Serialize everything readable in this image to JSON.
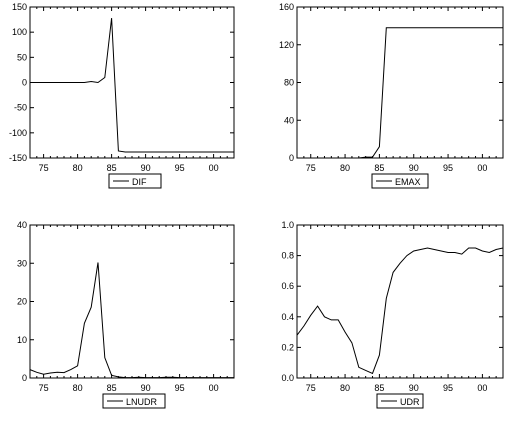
{
  "chart_data": [
    {
      "type": "line",
      "series": [
        {
          "name": "DIF",
          "x": [
            1973,
            1974,
            1975,
            1976,
            1977,
            1978,
            1979,
            1980,
            1981,
            1982,
            1983,
            1984,
            1985,
            1986,
            1987,
            1988,
            1989,
            1990,
            1991,
            1992,
            1993,
            1994,
            1995,
            1996,
            1997,
            1998,
            1999,
            2000,
            2001,
            2002,
            2003
          ],
          "values": [
            0,
            0,
            0,
            0,
            0,
            0,
            0,
            0,
            0,
            2,
            0,
            10,
            128,
            -136,
            -138,
            -138,
            -138,
            -138,
            -138,
            -138,
            -138,
            -138,
            -138,
            -138,
            -138,
            -138,
            -138,
            -138,
            -138,
            -138,
            -138
          ]
        }
      ],
      "xlim": [
        1973,
        2003
      ],
      "ylim": [
        -150,
        150
      ],
      "x_ticks": [
        {
          "v": 1975,
          "label": "75"
        },
        {
          "v": 1980,
          "label": "80"
        },
        {
          "v": 1985,
          "label": "85"
        },
        {
          "v": 1990,
          "label": "90"
        },
        {
          "v": 1995,
          "label": "95"
        },
        {
          "v": 2000,
          "label": "00"
        }
      ],
      "y_ticks": [
        {
          "v": -150,
          "label": "-150"
        },
        {
          "v": -100,
          "label": "-100"
        },
        {
          "v": -50,
          "label": "-50"
        },
        {
          "v": 0,
          "label": "0"
        },
        {
          "v": 50,
          "label": "50"
        },
        {
          "v": 100,
          "label": "100"
        },
        {
          "v": 150,
          "label": "150"
        }
      ],
      "legend": "DIF",
      "grid": false
    },
    {
      "type": "line",
      "series": [
        {
          "name": "EMAX",
          "x": [
            1973,
            1974,
            1975,
            1976,
            1977,
            1978,
            1979,
            1980,
            1981,
            1982,
            1983,
            1984,
            1985,
            1986,
            1987,
            1988,
            1989,
            1990,
            1991,
            1992,
            1993,
            1994,
            1995,
            1996,
            1997,
            1998,
            1999,
            2000,
            2001,
            2002,
            2003
          ],
          "values": [
            0,
            0,
            0,
            0,
            0,
            0,
            0,
            0,
            0,
            0,
            1,
            1,
            12,
            138,
            138,
            138,
            138,
            138,
            138,
            138,
            138,
            138,
            138,
            138,
            138,
            138,
            138,
            138,
            138,
            138,
            138
          ]
        }
      ],
      "xlim": [
        1973,
        2003
      ],
      "ylim": [
        0,
        160
      ],
      "x_ticks": [
        {
          "v": 1975,
          "label": "75"
        },
        {
          "v": 1980,
          "label": "80"
        },
        {
          "v": 1985,
          "label": "85"
        },
        {
          "v": 1990,
          "label": "90"
        },
        {
          "v": 1995,
          "label": "95"
        },
        {
          "v": 2000,
          "label": "00"
        }
      ],
      "y_ticks": [
        {
          "v": 0,
          "label": "0"
        },
        {
          "v": 40,
          "label": "40"
        },
        {
          "v": 80,
          "label": "80"
        },
        {
          "v": 120,
          "label": "120"
        },
        {
          "v": 160,
          "label": "160"
        }
      ],
      "legend": "EMAX",
      "grid": false
    },
    {
      "type": "line",
      "series": [
        {
          "name": "LNUDR",
          "x": [
            1973,
            1974,
            1975,
            1976,
            1977,
            1978,
            1979,
            1980,
            1981,
            1982,
            1983,
            1984,
            1985,
            1986,
            1987,
            1988,
            1989,
            1990,
            1991,
            1992,
            1993,
            1994,
            1995,
            1996,
            1997,
            1998,
            1999,
            2000,
            2001,
            2002,
            2003
          ],
          "values": [
            2.2,
            1.5,
            1.0,
            1.3,
            1.5,
            1.4,
            2.2,
            3.2,
            14.3,
            18.5,
            30.2,
            5.3,
            0.7,
            0.3,
            0.1,
            0.1,
            0.2,
            0.1,
            0.1,
            0.1,
            0.2,
            0.2,
            0.1,
            0.1,
            0.1,
            0.1,
            0.1,
            0.1,
            0.1,
            0.1,
            0.1
          ]
        }
      ],
      "xlim": [
        1973,
        2003
      ],
      "ylim": [
        0,
        40
      ],
      "x_ticks": [
        {
          "v": 1975,
          "label": "75"
        },
        {
          "v": 1980,
          "label": "80"
        },
        {
          "v": 1985,
          "label": "85"
        },
        {
          "v": 1990,
          "label": "90"
        },
        {
          "v": 1995,
          "label": "95"
        },
        {
          "v": 2000,
          "label": "00"
        }
      ],
      "y_ticks": [
        {
          "v": 0,
          "label": "0"
        },
        {
          "v": 10,
          "label": "10"
        },
        {
          "v": 20,
          "label": "20"
        },
        {
          "v": 30,
          "label": "30"
        },
        {
          "v": 40,
          "label": "40"
        }
      ],
      "legend": "LNUDR",
      "grid": false
    },
    {
      "type": "line",
      "series": [
        {
          "name": "UDR",
          "x": [
            1973,
            1974,
            1975,
            1976,
            1977,
            1978,
            1979,
            1980,
            1981,
            1982,
            1983,
            1984,
            1985,
            1986,
            1987,
            1988,
            1989,
            1990,
            1991,
            1992,
            1993,
            1994,
            1995,
            1996,
            1997,
            1998,
            1999,
            2000,
            2001,
            2002,
            2003
          ],
          "values": [
            0.28,
            0.34,
            0.41,
            0.47,
            0.4,
            0.38,
            0.38,
            0.3,
            0.23,
            0.07,
            0.05,
            0.03,
            0.15,
            0.52,
            0.69,
            0.75,
            0.8,
            0.83,
            0.84,
            0.85,
            0.84,
            0.83,
            0.82,
            0.82,
            0.81,
            0.85,
            0.85,
            0.83,
            0.82,
            0.84,
            0.85
          ]
        }
      ],
      "xlim": [
        1973,
        2003
      ],
      "ylim": [
        0.0,
        1.0
      ],
      "x_ticks": [
        {
          "v": 1975,
          "label": "75"
        },
        {
          "v": 1980,
          "label": "80"
        },
        {
          "v": 1985,
          "label": "85"
        },
        {
          "v": 1990,
          "label": "90"
        },
        {
          "v": 1995,
          "label": "95"
        },
        {
          "v": 2000,
          "label": "00"
        }
      ],
      "y_ticks": [
        {
          "v": 0.0,
          "label": "0.0"
        },
        {
          "v": 0.2,
          "label": "0.2"
        },
        {
          "v": 0.4,
          "label": "0.4"
        },
        {
          "v": 0.6,
          "label": "0.6"
        },
        {
          "v": 0.8,
          "label": "0.8"
        },
        {
          "v": 1.0,
          "label": "1.0"
        }
      ],
      "legend": "UDR",
      "grid": false
    }
  ]
}
